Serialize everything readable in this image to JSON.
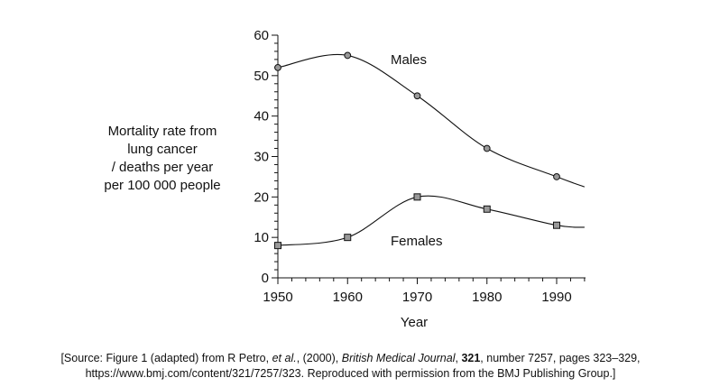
{
  "chart_data": {
    "type": "line",
    "xlabel": "Year",
    "ylabel_lines": [
      "Mortality rate from",
      "lung cancer",
      "/ deaths per year",
      "per 100 000 people"
    ],
    "xlim": [
      1950,
      1994
    ],
    "ylim": [
      0,
      60
    ],
    "x_ticks": [
      1950,
      1960,
      1970,
      1980,
      1990
    ],
    "y_ticks": [
      0,
      10,
      20,
      30,
      40,
      50,
      60
    ],
    "grid": false,
    "series": [
      {
        "name": "Males",
        "marker": "circle",
        "x": [
          1950,
          1960,
          1970,
          1980,
          1990
        ],
        "y": [
          52,
          55,
          45,
          32,
          25
        ],
        "curve_end": {
          "x": 1994,
          "y": 22.5
        }
      },
      {
        "name": "Females",
        "marker": "square",
        "x": [
          1950,
          1960,
          1970,
          1980,
          1990
        ],
        "y": [
          8,
          10,
          20,
          17,
          13
        ],
        "curve_end": {
          "x": 1994,
          "y": 12.5
        }
      }
    ],
    "colors": {
      "line": "#111111",
      "marker_fill": "#999999"
    }
  },
  "source": {
    "line1_prefix": "[Source: Figure 1 (adapted) from R Petro, ",
    "line1_etal": "et al.",
    "line1_mid": ", (2000), ",
    "line1_journal": "British Medical Journal",
    "line1_sep": ", ",
    "line1_volume": "321",
    "line1_suffix": ", number 7257, pages 323–329,",
    "line2": "https://www.bmj.com/content/321/7257/323. Reproduced with permission from the BMJ Publishing Group.]"
  }
}
